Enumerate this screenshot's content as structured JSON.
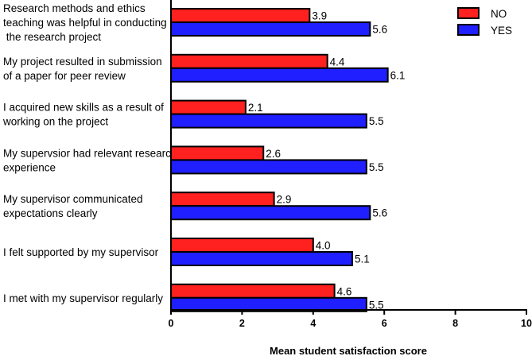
{
  "chart_data": {
    "type": "bar",
    "orientation": "horizontal",
    "categories": [
      "Research methods and ethics teaching was helpful in conducting the research project",
      "My project resulted in submission of a paper for peer review",
      "I acquired new skills as a result of working on the project",
      "My supervsior had relevant research experience",
      "My supervisor communicated expectations clearly",
      "I felt supported by my supervisor",
      "I met with my supervisor regularly"
    ],
    "category_lines": [
      [
        "Research methods and ethics",
        "teaching was helpful in conducting",
        " the research project"
      ],
      [
        "My project resulted in submission",
        "of a paper for peer review"
      ],
      [
        "I acquired new skills as a result of",
        "working on the project"
      ],
      [
        "My supervsior had relevant research",
        "experience"
      ],
      [
        "My supervisor communicated",
        "expectations clearly"
      ],
      [
        "I felt supported by my supervisor"
      ],
      [
        "I met with my supervisor regularly"
      ]
    ],
    "series": [
      {
        "name": "NO",
        "color": "#ff2020",
        "values": [
          3.9,
          4.4,
          2.1,
          2.6,
          2.9,
          4.0,
          4.6
        ],
        "labels": [
          "3.9",
          "4.4",
          "2.1",
          "2.6",
          "2.9",
          "4.0",
          "4.6"
        ]
      },
      {
        "name": "YES",
        "color": "#1f1fff",
        "values": [
          5.6,
          6.1,
          5.5,
          5.5,
          5.6,
          5.1,
          5.5
        ],
        "labels": [
          "5.6",
          "6.1",
          "5.5",
          "5.5",
          "5.6",
          "5.1",
          "5.5"
        ]
      }
    ],
    "xlabel": "Mean student satisfaction score",
    "xlim": [
      0,
      10
    ],
    "xticks": [
      0,
      2,
      4,
      6,
      8,
      10
    ],
    "xtick_labels": [
      "0",
      "2",
      "4",
      "6",
      "8",
      "10"
    ],
    "grid": false,
    "legend_position": "top-right"
  }
}
